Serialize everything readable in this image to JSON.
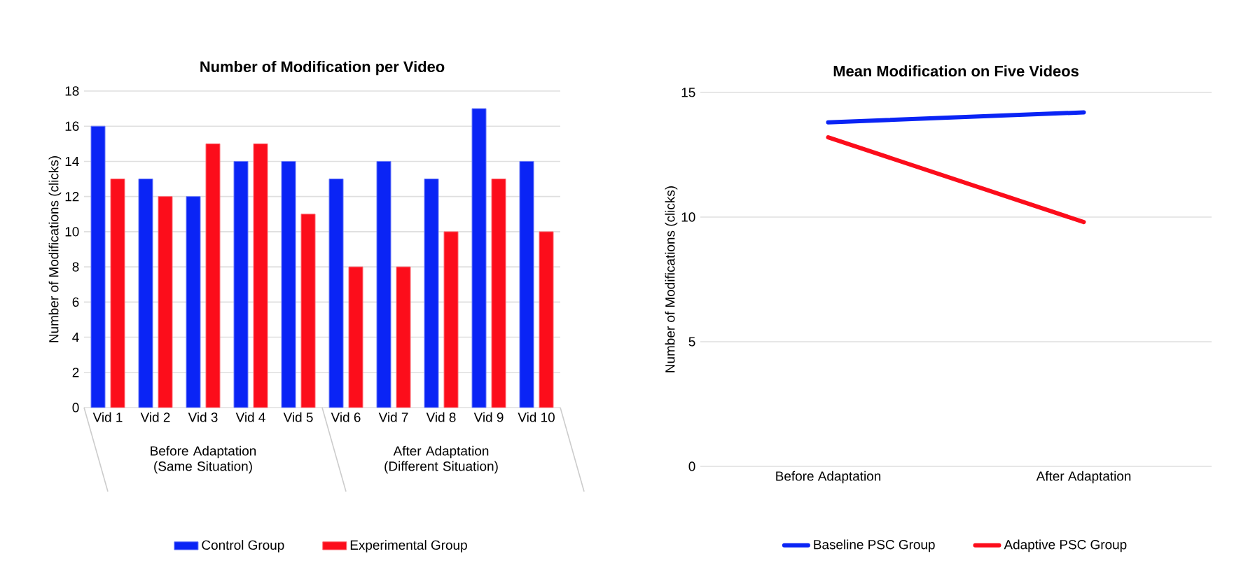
{
  "chart_data": [
    {
      "type": "bar",
      "title": "Number of Modification per Video",
      "ylabel": "Number of Modifications (clicks)",
      "categories": [
        "Vid 1",
        "Vid 2",
        "Vid 3",
        "Vid 4",
        "Vid 5",
        "Vid 6",
        "Vid 7",
        "Vid 8",
        "Vid 9",
        "Vid 10"
      ],
      "series": [
        {
          "name": "Control Group",
          "color": "#0a24f5",
          "values": [
            16,
            13,
            12,
            14,
            14,
            13,
            14,
            13,
            17,
            14
          ]
        },
        {
          "name": "Experimental Group",
          "color": "#fc0d1b",
          "values": [
            13,
            12,
            15,
            15,
            11,
            8,
            8,
            10,
            13,
            10
          ]
        }
      ],
      "annotations": [
        "Before Adaptation (Same Situation)",
        "After Adaptation (Different Situation)"
      ],
      "ylim": [
        0,
        18
      ],
      "yticks": [
        0,
        2,
        4,
        6,
        8,
        10,
        12,
        14,
        16,
        18
      ],
      "grid": "y",
      "legend": "bottom"
    },
    {
      "type": "line",
      "title": "Mean Modification on Five Videos",
      "ylabel": "Number of Modifications (clicks)",
      "categories": [
        "Before Adaptation",
        "After Adaptation"
      ],
      "series": [
        {
          "name": "Baseline PSC Group",
          "color": "#0a24f5",
          "values": [
            13.8,
            14.2
          ]
        },
        {
          "name": "Adaptive PSC Group",
          "color": "#fc0d1b",
          "values": [
            13.2,
            9.8
          ]
        }
      ],
      "ylim": [
        0,
        15
      ],
      "yticks": [
        0,
        5,
        10,
        15
      ],
      "grid": "y",
      "legend": "bottom",
      "marker": "none",
      "line_style": "solid"
    }
  ]
}
